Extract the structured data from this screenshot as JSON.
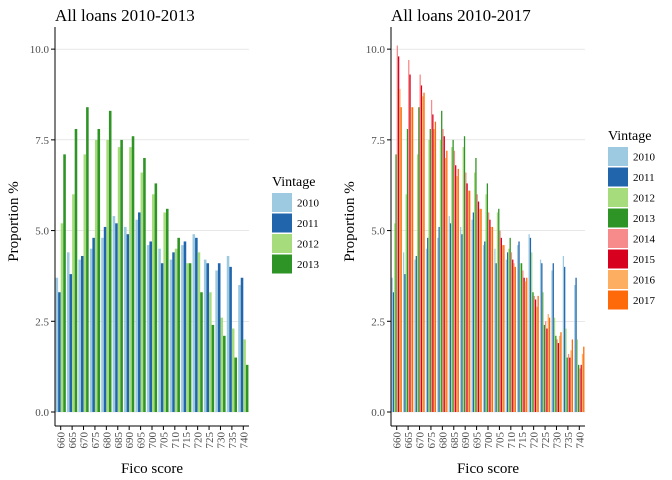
{
  "chart_data": [
    {
      "type": "bar",
      "title": "All loans 2010-2013",
      "xlabel": "Fico score",
      "ylabel": "Proportion %",
      "ylim": [
        0,
        10.5
      ],
      "yticks": [
        "0.0",
        "2.5",
        "5.0",
        "7.5",
        "10.0"
      ],
      "categories": [
        "660",
        "665",
        "670",
        "675",
        "680",
        "685",
        "690",
        "695",
        "700",
        "705",
        "710",
        "715",
        "720",
        "725",
        "730",
        "735",
        "740"
      ],
      "legend_title": "Vintage",
      "legend_position": "right",
      "grid": "horizontal",
      "series": [
        {
          "name": "2010",
          "color": "#9ecae1",
          "values": [
            3.7,
            4.4,
            4.2,
            4.5,
            4.8,
            5.4,
            5.1,
            5.3,
            4.6,
            4.5,
            4.2,
            4.6,
            4.9,
            4.2,
            3.9,
            4.3,
            3.5
          ]
        },
        {
          "name": "2011",
          "color": "#2166ac",
          "values": [
            3.3,
            3.8,
            4.3,
            4.8,
            5.1,
            5.2,
            4.9,
            5.5,
            4.7,
            4.1,
            4.4,
            4.7,
            4.8,
            4.1,
            4.1,
            4.0,
            3.7
          ]
        },
        {
          "name": "2012",
          "color": "#a6dc7b",
          "values": [
            5.2,
            6.0,
            7.1,
            7.5,
            7.5,
            7.3,
            7.3,
            6.6,
            6.0,
            5.5,
            4.5,
            4.1,
            4.4,
            3.3,
            2.6,
            2.3,
            2.0
          ]
        },
        {
          "name": "2013",
          "color": "#2e9425",
          "values": [
            7.1,
            7.8,
            8.4,
            7.8,
            8.3,
            7.5,
            7.6,
            7.0,
            6.3,
            5.6,
            4.8,
            4.1,
            3.3,
            2.4,
            2.1,
            1.5,
            1.3
          ]
        }
      ]
    },
    {
      "type": "bar",
      "title": "All loans 2010-2017",
      "xlabel": "Fico score",
      "ylabel": "Proportion %",
      "ylim": [
        0,
        10.5
      ],
      "yticks": [
        "0.0",
        "2.5",
        "5.0",
        "7.5",
        "10.0"
      ],
      "categories": [
        "660",
        "665",
        "670",
        "675",
        "680",
        "685",
        "690",
        "695",
        "700",
        "705",
        "710",
        "715",
        "720",
        "725",
        "730",
        "735",
        "740"
      ],
      "legend_title": "Vintage",
      "legend_position": "right",
      "grid": "horizontal",
      "series": [
        {
          "name": "2010",
          "color": "#9ecae1",
          "values": [
            3.7,
            4.4,
            4.2,
            4.5,
            4.8,
            5.4,
            5.1,
            5.3,
            4.6,
            4.5,
            4.2,
            4.6,
            4.9,
            4.2,
            3.9,
            4.3,
            3.5
          ]
        },
        {
          "name": "2011",
          "color": "#2166ac",
          "values": [
            3.3,
            3.8,
            4.3,
            4.8,
            5.1,
            5.2,
            4.9,
            5.5,
            4.7,
            4.1,
            4.4,
            4.7,
            4.8,
            4.1,
            4.1,
            4.0,
            3.7
          ]
        },
        {
          "name": "2012",
          "color": "#a6dc7b",
          "values": [
            5.2,
            6.0,
            7.1,
            7.5,
            7.5,
            7.3,
            7.3,
            6.6,
            6.0,
            5.5,
            4.5,
            4.1,
            4.4,
            3.3,
            2.6,
            2.3,
            2.0
          ]
        },
        {
          "name": "2013",
          "color": "#2e9425",
          "values": [
            7.1,
            7.8,
            8.4,
            7.8,
            8.3,
            7.5,
            7.6,
            7.0,
            6.3,
            5.6,
            4.8,
            4.1,
            3.3,
            2.4,
            2.1,
            1.5,
            1.3
          ]
        },
        {
          "name": "2014",
          "color": "#f78a8a",
          "values": [
            10.1,
            9.7,
            9.3,
            8.6,
            7.8,
            7.2,
            6.6,
            6.0,
            5.5,
            5.0,
            4.4,
            3.9,
            3.2,
            2.5,
            2.0,
            1.6,
            1.2
          ]
        },
        {
          "name": "2015",
          "color": "#d7001e",
          "values": [
            9.8,
            9.3,
            9.0,
            8.2,
            7.6,
            6.8,
            6.3,
            5.8,
            5.3,
            4.8,
            4.2,
            3.7,
            3.1,
            2.3,
            1.9,
            1.5,
            1.3
          ]
        },
        {
          "name": "2016",
          "color": "#fdae61",
          "values": [
            8.9,
            8.4,
            8.7,
            7.8,
            7.0,
            6.5,
            6.1,
            5.6,
            5.1,
            4.6,
            4.1,
            3.6,
            2.9,
            2.7,
            2.1,
            1.7,
            1.6
          ]
        },
        {
          "name": "2017",
          "color": "#fe6a09",
          "values": [
            8.4,
            8.4,
            8.8,
            8.0,
            7.2,
            6.7,
            6.1,
            5.6,
            5.1,
            4.6,
            4.0,
            3.7,
            3.2,
            2.6,
            2.2,
            2.0,
            1.8
          ]
        }
      ]
    }
  ]
}
